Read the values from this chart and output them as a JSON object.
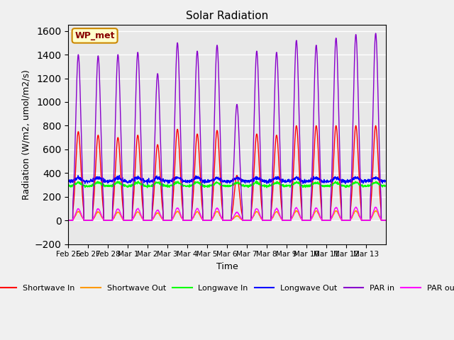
{
  "title": "Solar Radiation",
  "ylabel": "Radiation (W/m2, umol/m2/s)",
  "xlabel": "Time",
  "ylim": [
    -200,
    1650
  ],
  "yticks": [
    -200,
    0,
    200,
    400,
    600,
    800,
    1000,
    1200,
    1400,
    1600
  ],
  "x_labels": [
    "Feb 26",
    "Feb 27",
    "Feb 28",
    "Mar 1",
    "Mar 2",
    "Mar 3",
    "Mar 4",
    "Mar 5",
    "Mar 6",
    "Mar 7",
    "Mar 8",
    "Mar 9",
    "Mar 10",
    "Mar 11",
    "Mar 12",
    "Mar 13"
  ],
  "annotation": "WP_met",
  "annotation_bg": "#ffffcc",
  "annotation_border": "#cc8800",
  "colors": {
    "shortwave_in": "#ff0000",
    "shortwave_out": "#ff9900",
    "longwave_in": "#00ff00",
    "longwave_out": "#0000ff",
    "par_in": "#8800cc",
    "par_out": "#ff00ff"
  },
  "legend_labels": [
    "Shortwave In",
    "Shortwave Out",
    "Longwave In",
    "Longwave Out",
    "PAR in",
    "PAR out"
  ],
  "background_color": "#e8e8e8",
  "grid_color": "#ffffff",
  "sw_peaks": [
    750,
    720,
    700,
    720,
    640,
    770,
    730,
    760,
    380,
    730,
    720,
    800,
    800,
    800,
    800,
    800
  ],
  "par_peaks": [
    1400,
    1390,
    1400,
    1420,
    1240,
    1500,
    1430,
    1480,
    980,
    1430,
    1420,
    1520,
    1480,
    1540,
    1570,
    1580
  ]
}
